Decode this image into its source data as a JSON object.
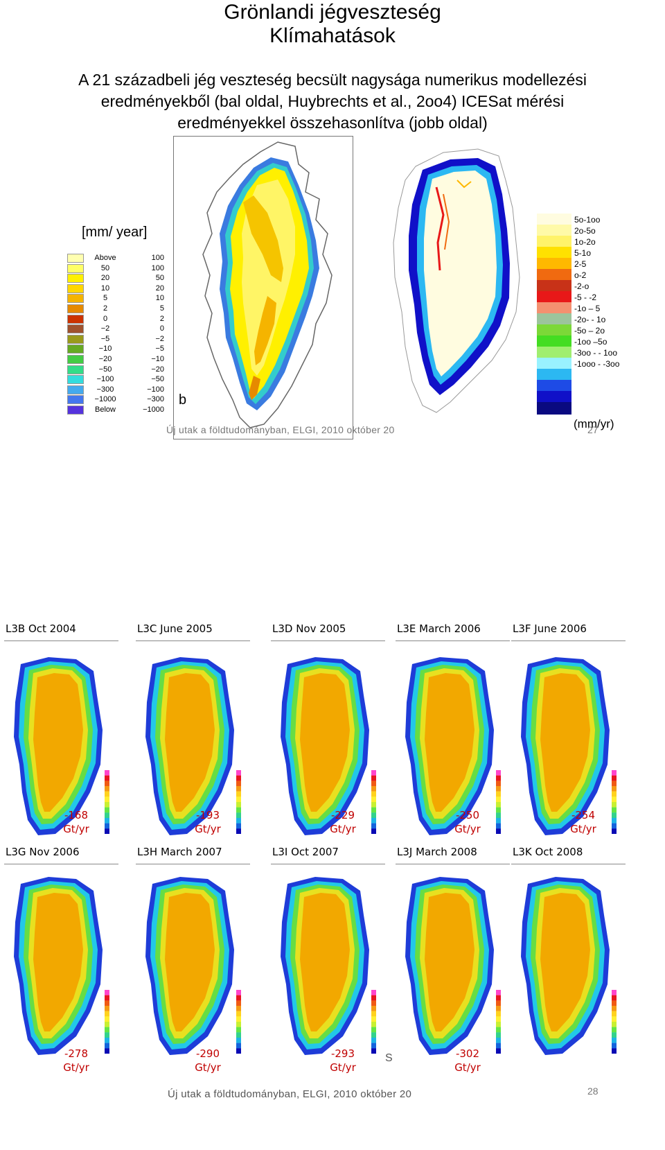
{
  "slide": {
    "title_line1": "Grönlandi jégveszteség",
    "title_line2": "Klímahatások",
    "subtitle_line1": "A 21 századbeli jég veszteség becsült nagysága  numerikus modellezési",
    "subtitle_line2": "eredményekből (bal oldal, Huybrechts et al., 2oo4) ICESat mérési",
    "subtitle_line3": "eredményekkel összehasonlítva (jobb oldal)",
    "footer_top": "Új utak a földtudományban, ELGI, 2010 október 20",
    "footer_bottom": "Új utak a földtudományban, ELGI, 2010 október 20",
    "slide_number_top": "27",
    "slide_number_bottom": "28"
  },
  "left_map": {
    "unit_label": "[mm/ year]",
    "panel_letter": "b",
    "legend": [
      {
        "lo": "Above",
        "hi": "100",
        "color": "#ffffb0"
      },
      {
        "lo": "50",
        "hi": "100",
        "color": "#ffff66"
      },
      {
        "lo": "20",
        "hi": "50",
        "color": "#fff000"
      },
      {
        "lo": "10",
        "hi": "20",
        "color": "#ffd700"
      },
      {
        "lo": "5",
        "hi": "10",
        "color": "#f5b400"
      },
      {
        "lo": "2",
        "hi": "5",
        "color": "#e68a00"
      },
      {
        "lo": "0",
        "hi": "2",
        "color": "#cc3300"
      },
      {
        "lo": "−2",
        "hi": "0",
        "color": "#a0522d"
      },
      {
        "lo": "−5",
        "hi": "−2",
        "color": "#9a9a1a"
      },
      {
        "lo": "−10",
        "hi": "−5",
        "color": "#66aa22"
      },
      {
        "lo": "−20",
        "hi": "−10",
        "color": "#44cc44"
      },
      {
        "lo": "−50",
        "hi": "−20",
        "color": "#33dd88"
      },
      {
        "lo": "−100",
        "hi": "−50",
        "color": "#33dddd"
      },
      {
        "lo": "−300",
        "hi": "−100",
        "color": "#44aaee"
      },
      {
        "lo": "−1000",
        "hi": "−300",
        "color": "#4477ee"
      },
      {
        "lo": "Below",
        "hi": "−1000",
        "color": "#5533dd"
      }
    ]
  },
  "right_map": {
    "unit_label": "(mm/yr)",
    "legend": [
      {
        "label": "5o-1oo",
        "color": "#fffce0"
      },
      {
        "label": "2o-5o",
        "color": "#fffaa8"
      },
      {
        "label": "1o-2o",
        "color": "#fff36a"
      },
      {
        "label": "5-1o",
        "color": "#ffe100"
      },
      {
        "label": "2-5",
        "color": "#ffb800"
      },
      {
        "label": "o-2",
        "color": "#f06a10"
      },
      {
        "label": "-2-o",
        "color": "#c83218"
      },
      {
        "label": "-5 - -2",
        "color": "#e81818"
      },
      {
        "label": "-1o – 5",
        "color": "#f49070"
      },
      {
        "label": "-2o- - 1o",
        "color": "#9cc49c"
      },
      {
        "label": "-5o – 2o",
        "color": "#7cd838"
      },
      {
        "label": "-1oo –5o",
        "color": "#44dd22"
      },
      {
        "label": "-3oo - - 1oo",
        "color": "#a0ee70"
      },
      {
        "label": "-1ooo - -3oo",
        "color": "#99f2ff"
      },
      {
        "label": "",
        "color": "#2cb8f2"
      },
      {
        "label": "",
        "color": "#1e4be6"
      },
      {
        "label": "",
        "color": "#1010c8"
      },
      {
        "label": "",
        "color": "#0a0a80"
      }
    ]
  },
  "panels_row1": [
    {
      "label": "L3B Oct 2004",
      "loss": "-168",
      "unit": "Gt/yr"
    },
    {
      "label": "L3C June 2005",
      "loss": "-193",
      "unit": "Gt/yr"
    },
    {
      "label": "L3D  Nov 2005",
      "loss": "-229",
      "unit": "Gt/yr"
    },
    {
      "label": "L3E  March 2006",
      "loss": "-250",
      "unit": "Gt/yr"
    },
    {
      "label": "L3F June 2006",
      "loss": "-254",
      "unit": "Gt/yr"
    }
  ],
  "panels_row2": [
    {
      "label": "L3G Nov 2006",
      "loss": "-278",
      "unit": "Gt/yr"
    },
    {
      "label": "L3H March 2007",
      "loss": "-290",
      "unit": "Gt/yr"
    },
    {
      "label": "L3I  Oct 2007",
      "loss": "-293",
      "unit": "Gt/yr"
    },
    {
      "label": "L3J  March 2008",
      "loss": "-302",
      "unit": "Gt/yr"
    },
    {
      "label": "L3K Oct 2008",
      "loss": "",
      "unit": ""
    }
  ]
}
